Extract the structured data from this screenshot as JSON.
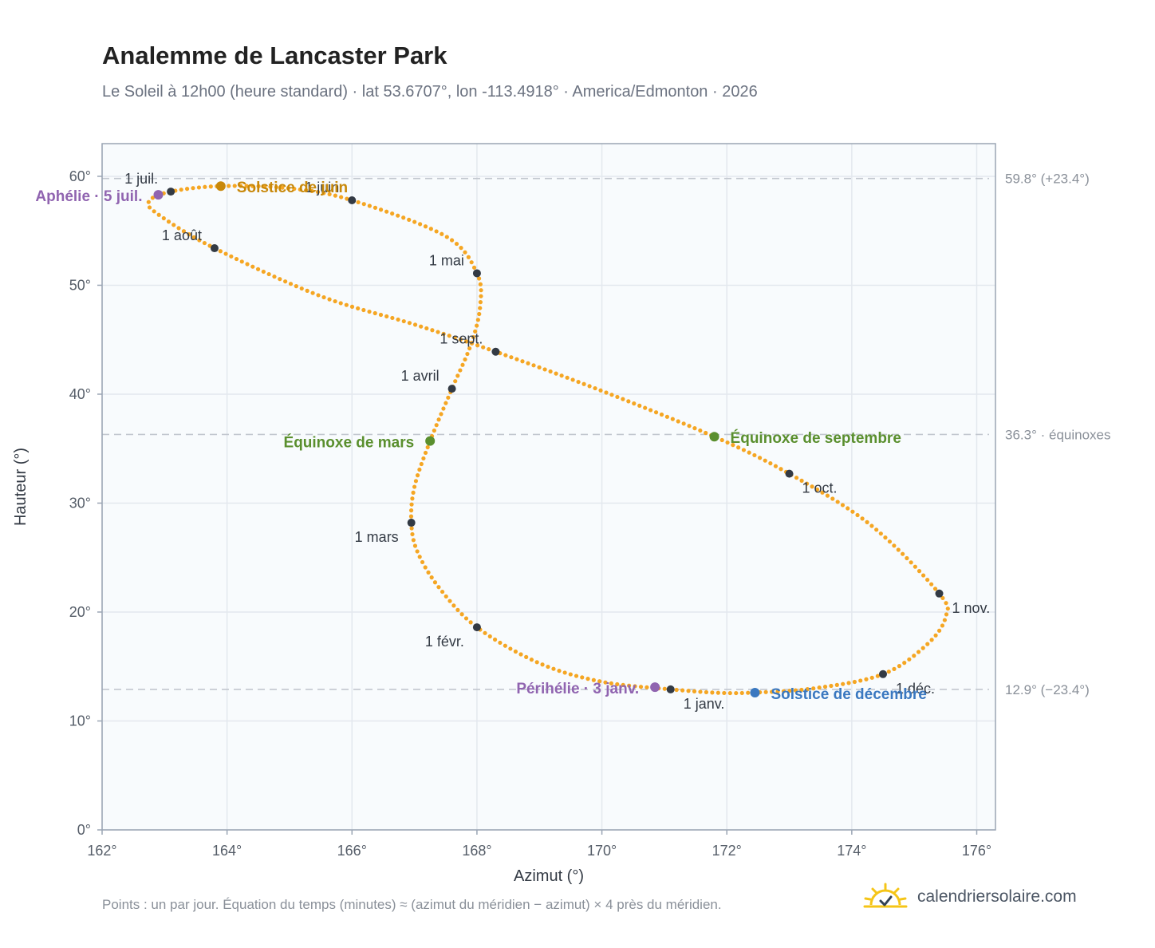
{
  "header": {
    "title": "Analemme de Lancaster Park",
    "subtitle": "Le Soleil à 12h00 (heure standard) · lat 53.6707°, lon -113.4918° · America/Edmonton · 2026"
  },
  "footer": {
    "note": "Points : un par jour. Équation du temps (minutes) ≈ (azimut du méridien − azimut) × 4 près du méridien.",
    "brand": "calendriersolaire.com",
    "brand_icon": "sun-icon"
  },
  "colors": {
    "curve": "#f5a623",
    "month_marker": "#333a44",
    "solstice_june": "#c8880a",
    "solstice_december": "#3a78c0",
    "equinox": "#5a8f2e",
    "apsis": "#9064b0",
    "plot_bg": "#f8fbfd",
    "grid": "#e3e8ee",
    "reference_line": "#c2c7cf",
    "axis": "#9aa5b4"
  },
  "chart_data": {
    "type": "scatter",
    "xlabel": "Azimut (°)",
    "ylabel": "Hauteur (°)",
    "xlim": [
      162,
      176.3
    ],
    "ylim": [
      0,
      63
    ],
    "x_ticks": [
      "162°",
      "164°",
      "166°",
      "168°",
      "170°",
      "172°",
      "174°",
      "176°"
    ],
    "y_ticks": [
      "0°",
      "10°",
      "20°",
      "30°",
      "40°",
      "50°",
      "60°"
    ],
    "x_tick_values": [
      162,
      164,
      166,
      168,
      170,
      172,
      174,
      176
    ],
    "y_tick_values": [
      0,
      10,
      20,
      30,
      40,
      50,
      60
    ],
    "grid": true,
    "reference_lines": [
      {
        "y": 59.8,
        "label": "59.8° (+23.4°)"
      },
      {
        "y": 36.3,
        "label": "36.3° · équinoxes"
      },
      {
        "y": 12.9,
        "label": "12.9° (−23.4°)"
      }
    ],
    "analemma_path": [
      {
        "x": 171.1,
        "y": 12.9
      },
      {
        "x": 170.0,
        "y": 13.6
      },
      {
        "x": 169.0,
        "y": 15.3
      },
      {
        "x": 168.0,
        "y": 18.6
      },
      {
        "x": 167.4,
        "y": 22.2
      },
      {
        "x": 167.05,
        "y": 25.5
      },
      {
        "x": 166.95,
        "y": 28.2
      },
      {
        "x": 167.0,
        "y": 31.5
      },
      {
        "x": 167.25,
        "y": 35.7
      },
      {
        "x": 167.6,
        "y": 40.5
      },
      {
        "x": 167.9,
        "y": 44.5
      },
      {
        "x": 168.05,
        "y": 48.0
      },
      {
        "x": 168.0,
        "y": 51.1
      },
      {
        "x": 167.5,
        "y": 54.5
      },
      {
        "x": 166.0,
        "y": 57.8
      },
      {
        "x": 165.0,
        "y": 58.9
      },
      {
        "x": 163.9,
        "y": 59.1
      },
      {
        "x": 163.1,
        "y": 58.6
      },
      {
        "x": 162.75,
        "y": 57.7
      },
      {
        "x": 162.9,
        "y": 56.5
      },
      {
        "x": 163.8,
        "y": 53.4
      },
      {
        "x": 165.5,
        "y": 49.0
      },
      {
        "x": 167.0,
        "y": 46.4
      },
      {
        "x": 168.3,
        "y": 43.9
      },
      {
        "x": 170.0,
        "y": 40.3
      },
      {
        "x": 171.8,
        "y": 36.1
      },
      {
        "x": 173.0,
        "y": 32.7
      },
      {
        "x": 174.3,
        "y": 28.0
      },
      {
        "x": 175.4,
        "y": 21.7
      },
      {
        "x": 175.5,
        "y": 19.5
      },
      {
        "x": 175.2,
        "y": 17.0
      },
      {
        "x": 174.5,
        "y": 14.3
      },
      {
        "x": 173.4,
        "y": 13.0
      },
      {
        "x": 172.4,
        "y": 12.6
      },
      {
        "x": 171.8,
        "y": 12.6
      },
      {
        "x": 171.1,
        "y": 12.9
      }
    ],
    "month_markers": [
      {
        "label": "1 janv.",
        "x": 171.1,
        "y": 12.9,
        "anchor": "below-right"
      },
      {
        "label": "1 févr.",
        "x": 168.0,
        "y": 18.6,
        "anchor": "below-left"
      },
      {
        "label": "1 mars",
        "x": 166.95,
        "y": 28.2,
        "anchor": "below-left"
      },
      {
        "label": "1 avril",
        "x": 167.6,
        "y": 40.5,
        "anchor": "above-left"
      },
      {
        "label": "1 mai",
        "x": 168.0,
        "y": 51.1,
        "anchor": "above-left"
      },
      {
        "label": "1 juin",
        "x": 166.0,
        "y": 57.8,
        "anchor": "above-left"
      },
      {
        "label": "1 juil.",
        "x": 163.1,
        "y": 58.6,
        "anchor": "above-left"
      },
      {
        "label": "1 août",
        "x": 163.8,
        "y": 53.4,
        "anchor": "above-left"
      },
      {
        "label": "1 sept.",
        "x": 168.3,
        "y": 43.9,
        "anchor": "above-left"
      },
      {
        "label": "1 oct.",
        "x": 173.0,
        "y": 32.7,
        "anchor": "below-right"
      },
      {
        "label": "1 nov.",
        "x": 175.4,
        "y": 21.7,
        "anchor": "right"
      },
      {
        "label": "1 déc.",
        "x": 174.5,
        "y": 14.3,
        "anchor": "below-right"
      }
    ],
    "events": [
      {
        "label": "Solstice de juin",
        "x": 163.9,
        "y": 59.1,
        "color": "#c8880a",
        "anchor": "right"
      },
      {
        "label": "Aphélie · 5 juil.",
        "x": 162.9,
        "y": 58.3,
        "color": "#9064b0",
        "anchor": "left"
      },
      {
        "label": "Équinoxe de mars",
        "x": 167.25,
        "y": 35.7,
        "color": "#5a8f2e",
        "anchor": "left"
      },
      {
        "label": "Équinoxe de septembre",
        "x": 171.8,
        "y": 36.1,
        "color": "#5a8f2e",
        "anchor": "right"
      },
      {
        "label": "Périhélie · 3 janv.",
        "x": 170.85,
        "y": 13.1,
        "color": "#9064b0",
        "anchor": "left"
      },
      {
        "label": "Solstice de décembre",
        "x": 172.45,
        "y": 12.6,
        "color": "#3a78c0",
        "anchor": "right"
      }
    ]
  }
}
